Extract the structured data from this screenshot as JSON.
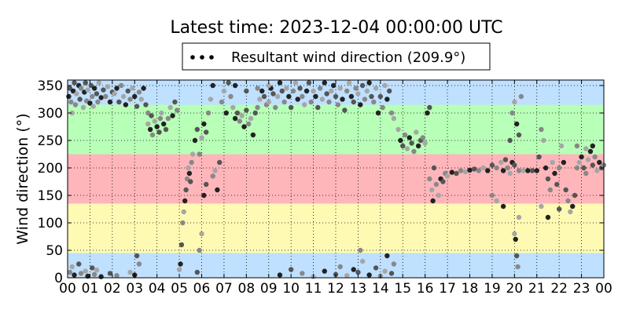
{
  "chart_data": {
    "type": "scatter",
    "title": "Latest time: 2023-12-04 00:00:00 UTC",
    "xlabel": "",
    "ylabel": "Wind direction (°)",
    "ylim": [
      0,
      360
    ],
    "xlim": [
      0,
      24
    ],
    "x_ticks": [
      "00",
      "01",
      "02",
      "03",
      "04",
      "05",
      "06",
      "07",
      "08",
      "09",
      "10",
      "11",
      "12",
      "13",
      "14",
      "15",
      "16",
      "17",
      "18",
      "19",
      "20",
      "21",
      "22",
      "23",
      "00"
    ],
    "y_ticks": [
      0,
      50,
      100,
      150,
      200,
      250,
      300,
      350
    ],
    "grid": true,
    "legend": {
      "placement": "top-center",
      "label": "Resultant wind direction (209.9°)"
    },
    "bands": [
      {
        "from": 0,
        "to": 45,
        "color": "#bfe0ff"
      },
      {
        "from": 45,
        "to": 135,
        "color": "#fffab3"
      },
      {
        "from": 135,
        "to": 225,
        "color": "#ffb6bb"
      },
      {
        "from": 225,
        "to": 315,
        "color": "#b8ffb8"
      },
      {
        "from": 315,
        "to": 360,
        "color": "#bfe0ff"
      }
    ],
    "series": [
      {
        "marker_colors": [
          "#222222",
          "#555555",
          "#888888",
          "#a6a6a6"
        ],
        "points": [
          [
            0.05,
            330
          ],
          [
            0.1,
            345
          ],
          [
            0.15,
            320
          ],
          [
            0.2,
            300
          ],
          [
            0.25,
            340
          ],
          [
            0.3,
            355
          ],
          [
            0.35,
            315
          ],
          [
            0.4,
            335
          ],
          [
            0.5,
            350
          ],
          [
            0.55,
            325
          ],
          [
            0.6,
            345
          ],
          [
            0.7,
            310
          ],
          [
            0.75,
            338
          ],
          [
            0.8,
            355
          ],
          [
            0.85,
            322
          ],
          [
            0.9,
            342
          ],
          [
            1.0,
            318
          ],
          [
            1.05,
            350
          ],
          [
            1.1,
            330
          ],
          [
            1.15,
            312
          ],
          [
            1.2,
            345
          ],
          [
            1.3,
            335
          ],
          [
            1.35,
            320
          ],
          [
            1.4,
            355
          ],
          [
            1.5,
            328
          ],
          [
            1.6,
            342
          ],
          [
            1.7,
            330
          ],
          [
            1.8,
            348
          ],
          [
            1.9,
            320
          ],
          [
            2.0,
            338
          ],
          [
            0.1,
            10
          ],
          [
            0.2,
            20
          ],
          [
            0.3,
            5
          ],
          [
            0.5,
            25
          ],
          [
            0.6,
            8
          ],
          [
            0.8,
            12
          ],
          [
            0.9,
            3
          ],
          [
            1.1,
            18
          ],
          [
            1.2,
            6
          ],
          [
            1.3,
            14
          ],
          [
            1.5,
            2
          ],
          [
            1.9,
            8
          ],
          [
            2.2,
            4
          ],
          [
            2.8,
            10
          ],
          [
            3.0,
            5
          ],
          [
            3.1,
            40
          ],
          [
            3.2,
            25
          ],
          [
            2.1,
            335
          ],
          [
            2.2,
            345
          ],
          [
            2.3,
            320
          ],
          [
            2.4,
            350
          ],
          [
            2.5,
            330
          ],
          [
            2.6,
            315
          ],
          [
            2.7,
            340
          ],
          [
            2.8,
            325
          ],
          [
            2.9,
            345
          ],
          [
            3.0,
            330
          ],
          [
            3.1,
            312
          ],
          [
            3.2,
            338
          ],
          [
            3.3,
            325
          ],
          [
            3.4,
            345
          ],
          [
            3.5,
            315
          ],
          [
            3.6,
            300
          ],
          [
            3.6,
            280
          ],
          [
            3.7,
            270
          ],
          [
            3.75,
            295
          ],
          [
            3.8,
            260
          ],
          [
            3.9,
            285
          ],
          [
            4.0,
            275
          ],
          [
            4.1,
            265
          ],
          [
            4.15,
            290
          ],
          [
            4.2,
            300
          ],
          [
            4.3,
            280
          ],
          [
            4.4,
            270
          ],
          [
            4.5,
            290
          ],
          [
            4.6,
            310
          ],
          [
            4.7,
            295
          ],
          [
            4.8,
            320
          ],
          [
            4.9,
            305
          ],
          [
            5.0,
            15
          ],
          [
            5.05,
            25
          ],
          [
            5.1,
            60
          ],
          [
            5.15,
            100
          ],
          [
            5.2,
            120
          ],
          [
            5.25,
            140
          ],
          [
            5.3,
            160
          ],
          [
            5.35,
            180
          ],
          [
            5.4,
            200
          ],
          [
            5.45,
            190
          ],
          [
            5.5,
            175
          ],
          [
            5.55,
            210
          ],
          [
            5.6,
            225
          ],
          [
            5.7,
            250
          ],
          [
            5.8,
            270
          ],
          [
            5.9,
            225
          ],
          [
            6.0,
            255
          ],
          [
            6.1,
            280
          ],
          [
            6.2,
            265
          ],
          [
            6.3,
            300
          ],
          [
            6.4,
            325
          ],
          [
            6.5,
            350
          ],
          [
            5.8,
            10
          ],
          [
            5.9,
            50
          ],
          [
            6.0,
            80
          ],
          [
            6.1,
            150
          ],
          [
            6.2,
            170
          ],
          [
            6.5,
            185
          ],
          [
            6.6,
            195
          ],
          [
            6.7,
            160
          ],
          [
            6.8,
            210
          ],
          [
            6.9,
            320
          ],
          [
            7.0,
            340
          ],
          [
            7.1,
            300
          ],
          [
            7.2,
            355
          ],
          [
            7.3,
            330
          ],
          [
            7.4,
            310
          ],
          [
            7.5,
            290
          ],
          [
            7.6,
            300
          ],
          [
            7.7,
            285
          ],
          [
            7.8,
            295
          ],
          [
            7.9,
            275
          ],
          [
            8.0,
            305
          ],
          [
            8.1,
            280
          ],
          [
            8.2,
            290
          ],
          [
            8.3,
            260
          ],
          [
            8.4,
            300
          ],
          [
            8.5,
            310
          ],
          [
            8.6,
            325
          ],
          [
            8.7,
            340
          ],
          [
            8.8,
            330
          ],
          [
            8.9,
            315
          ],
          [
            9.0,
            320
          ],
          [
            9.1,
            345
          ],
          [
            9.2,
            335
          ],
          [
            9.3,
            310
          ],
          [
            9.4,
            330
          ],
          [
            9.5,
            355
          ],
          [
            9.6,
            340
          ],
          [
            9.7,
            320
          ],
          [
            9.8,
            345
          ],
          [
            9.9,
            330
          ],
          [
            10.0,
            310
          ],
          [
            10.1,
            340
          ],
          [
            10.2,
            355
          ],
          [
            10.3,
            325
          ],
          [
            10.4,
            345
          ],
          [
            10.5,
            330
          ],
          [
            10.6,
            315
          ],
          [
            10.7,
            340
          ],
          [
            10.8,
            355
          ],
          [
            10.9,
            320
          ],
          [
            11.0,
            340
          ],
          [
            11.1,
            330
          ],
          [
            11.2,
            310
          ],
          [
            11.3,
            345
          ],
          [
            11.4,
            325
          ],
          [
            11.5,
            355
          ],
          [
            11.6,
            335
          ],
          [
            11.7,
            320
          ],
          [
            11.8,
            340
          ],
          [
            11.9,
            350
          ],
          [
            12.0,
            330
          ],
          [
            12.1,
            315
          ],
          [
            12.2,
            345
          ],
          [
            12.3,
            325
          ],
          [
            12.4,
            305
          ],
          [
            12.5,
            340
          ],
          [
            12.6,
            355
          ],
          [
            12.7,
            330
          ],
          [
            12.8,
            320
          ],
          [
            12.9,
            345
          ],
          [
            13.0,
            335
          ],
          [
            13.1,
            315
          ],
          [
            13.2,
            350
          ],
          [
            13.3,
            325
          ],
          [
            13.4,
            340
          ],
          [
            13.5,
            355
          ],
          [
            13.6,
            330
          ],
          [
            13.7,
            320
          ],
          [
            13.8,
            345
          ],
          [
            13.9,
            300
          ],
          [
            14.0,
            330
          ],
          [
            14.1,
            310
          ],
          [
            14.2,
            350
          ],
          [
            14.3,
            325
          ],
          [
            14.4,
            340
          ],
          [
            14.5,
            300
          ],
          [
            14.6,
            290
          ],
          [
            7.5,
            350
          ],
          [
            8.0,
            340
          ],
          [
            8.5,
            345
          ],
          [
            9.0,
            350
          ],
          [
            9.5,
            5
          ],
          [
            10.0,
            15
          ],
          [
            10.5,
            8
          ],
          [
            11.0,
            2
          ],
          [
            11.5,
            12
          ],
          [
            12.0,
            6
          ],
          [
            12.2,
            20
          ],
          [
            12.5,
            4
          ],
          [
            12.8,
            15
          ],
          [
            13.0,
            10
          ],
          [
            13.1,
            50
          ],
          [
            13.2,
            30
          ],
          [
            13.5,
            5
          ],
          [
            13.8,
            18
          ],
          [
            14.0,
            3
          ],
          [
            14.2,
            12
          ],
          [
            14.3,
            40
          ],
          [
            14.5,
            8
          ],
          [
            14.6,
            25
          ],
          [
            14.8,
            270
          ],
          [
            14.9,
            250
          ],
          [
            15.0,
            240
          ],
          [
            15.1,
            260
          ],
          [
            15.2,
            235
          ],
          [
            15.3,
            255
          ],
          [
            15.4,
            245
          ],
          [
            15.5,
            230
          ],
          [
            15.6,
            265
          ],
          [
            15.7,
            240
          ],
          [
            15.8,
            250
          ],
          [
            15.9,
            255
          ],
          [
            16.0,
            245
          ],
          [
            16.1,
            300
          ],
          [
            16.2,
            310
          ],
          [
            16.2,
            180
          ],
          [
            16.3,
            160
          ],
          [
            16.35,
            140
          ],
          [
            16.4,
            200
          ],
          [
            16.5,
            170
          ],
          [
            16.6,
            150
          ],
          [
            16.7,
            180
          ],
          [
            16.8,
            175
          ],
          [
            16.9,
            190
          ],
          [
            17.0,
            185
          ],
          [
            17.2,
            192
          ],
          [
            17.4,
            190
          ],
          [
            17.6,
            195
          ],
          [
            17.8,
            193
          ],
          [
            18.0,
            196
          ],
          [
            18.2,
            198
          ],
          [
            18.4,
            195
          ],
          [
            18.6,
            200
          ],
          [
            18.8,
            195
          ],
          [
            19.0,
            205
          ],
          [
            19.2,
            200
          ],
          [
            19.4,
            210
          ],
          [
            19.5,
            195
          ],
          [
            19.6,
            215
          ],
          [
            19.7,
            200
          ],
          [
            19.8,
            190
          ],
          [
            19.9,
            210
          ],
          [
            20.0,
            205
          ],
          [
            20.2,
            195
          ],
          [
            20.4,
            195
          ],
          [
            20.6,
            195
          ],
          [
            20.8,
            195
          ],
          [
            19.0,
            150
          ],
          [
            19.2,
            140
          ],
          [
            19.5,
            130
          ],
          [
            19.8,
            250
          ],
          [
            19.9,
            300
          ],
          [
            20.0,
            320
          ],
          [
            20.1,
            280
          ],
          [
            20.2,
            260
          ],
          [
            20.3,
            330
          ],
          [
            20.0,
            80
          ],
          [
            20.05,
            70
          ],
          [
            20.1,
            40
          ],
          [
            20.15,
            20
          ],
          [
            20.2,
            110
          ],
          [
            21.0,
            195
          ],
          [
            21.1,
            220
          ],
          [
            21.2,
            270
          ],
          [
            21.3,
            250
          ],
          [
            21.4,
            200
          ],
          [
            21.5,
            180
          ],
          [
            21.6,
            160
          ],
          [
            21.7,
            210
          ],
          [
            21.8,
            190
          ],
          [
            21.9,
            170
          ],
          [
            22.0,
            200
          ],
          [
            22.1,
            240
          ],
          [
            22.2,
            210
          ],
          [
            22.3,
            160
          ],
          [
            22.4,
            140
          ],
          [
            22.5,
            120
          ],
          [
            22.6,
            130
          ],
          [
            22.7,
            150
          ],
          [
            22.8,
            200
          ],
          [
            22.9,
            210
          ],
          [
            23.0,
            220
          ],
          [
            23.1,
            200
          ],
          [
            23.2,
            190
          ],
          [
            23.3,
            215
          ],
          [
            23.4,
            230
          ],
          [
            23.5,
            205
          ],
          [
            23.6,
            220
          ],
          [
            23.7,
            195
          ],
          [
            23.8,
            210
          ],
          [
            23.9,
            200
          ],
          [
            24.0,
            205
          ],
          [
            21.2,
            130
          ],
          [
            21.5,
            110
          ],
          [
            22.0,
            125
          ],
          [
            22.8,
            240
          ],
          [
            23.2,
            235
          ],
          [
            23.5,
            240
          ]
        ]
      }
    ]
  }
}
